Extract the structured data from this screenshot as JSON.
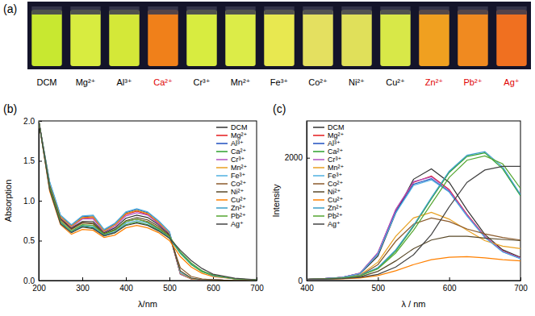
{
  "photo": {
    "panel": "(a)",
    "vials": [
      {
        "label": "DCM",
        "color": "#c8e830",
        "label_color": "#000000"
      },
      {
        "label": "Mg²⁺",
        "color": "#d8ec40",
        "label_color": "#000000"
      },
      {
        "label": "Al³⁺",
        "color": "#d4e838",
        "label_color": "#000000"
      },
      {
        "label": "Ca²⁺",
        "color": "#f0801a",
        "label_color": "#e00000"
      },
      {
        "label": "Cr³⁺",
        "color": "#d8ec40",
        "label_color": "#000000"
      },
      {
        "label": "Mn²⁺",
        "color": "#dcec48",
        "label_color": "#000000"
      },
      {
        "label": "Fe³⁺",
        "color": "#e8e850",
        "label_color": "#000000"
      },
      {
        "label": "Co²⁺",
        "color": "#e4e060",
        "label_color": "#000000"
      },
      {
        "label": "Ni²⁺",
        "color": "#e0e05a",
        "label_color": "#000000"
      },
      {
        "label": "Cu²⁺",
        "color": "#d8e848",
        "label_color": "#000000"
      },
      {
        "label": "Zn²⁺",
        "color": "#f0a020",
        "label_color": "#e00000"
      },
      {
        "label": "Pb²⁺",
        "color": "#f08a20",
        "label_color": "#e00000"
      },
      {
        "label": "Ag⁺",
        "color": "#f07020",
        "label_color": "#e00000"
      }
    ]
  },
  "chart_data": [
    {
      "type": "line",
      "panel": "(b)",
      "x_label": "λ/nm",
      "y_label": "Absorption",
      "legend": "upper right",
      "x": [
        200,
        225,
        250,
        275,
        300,
        325,
        350,
        375,
        400,
        425,
        450,
        475,
        500,
        525,
        550,
        575,
        600,
        650,
        700
      ],
      "xlim": [
        200,
        700
      ],
      "xticks": [
        200,
        300,
        400,
        500,
        600,
        700
      ],
      "ylim": [
        0,
        2.0
      ],
      "yticks": [
        {
          "value": 0,
          "label": "0.0"
        },
        {
          "value": 0.5,
          "label": "0.5"
        },
        {
          "value": 1,
          "label": "1.0"
        },
        {
          "value": 1.5,
          "label": "1.5"
        },
        {
          "value": 2,
          "label": "2.0"
        }
      ],
      "series": [
        {
          "name": "DCM",
          "color": "#333333",
          "values": [
            2.0,
            1.2,
            0.78,
            0.66,
            0.74,
            0.74,
            0.6,
            0.66,
            0.78,
            0.82,
            0.79,
            0.7,
            0.58,
            0.08,
            0.02,
            0.01,
            0.01,
            0,
            0
          ]
        },
        {
          "name": "Mg²⁺",
          "color": "#e41a1c",
          "values": [
            2.0,
            1.22,
            0.8,
            0.68,
            0.78,
            0.79,
            0.62,
            0.7,
            0.83,
            0.87,
            0.83,
            0.72,
            0.6,
            0.09,
            0.02,
            0.01,
            0.01,
            0,
            0
          ]
        },
        {
          "name": "Al³⁺",
          "color": "#1f4fbf",
          "values": [
            2.0,
            1.23,
            0.81,
            0.69,
            0.8,
            0.81,
            0.63,
            0.71,
            0.85,
            0.89,
            0.85,
            0.74,
            0.61,
            0.09,
            0.02,
            0.01,
            0.01,
            0,
            0
          ]
        },
        {
          "name": "Ca²⁺",
          "color": "#2ca02c",
          "values": [
            2.0,
            1.15,
            0.72,
            0.6,
            0.68,
            0.66,
            0.56,
            0.6,
            0.7,
            0.73,
            0.7,
            0.63,
            0.53,
            0.34,
            0.2,
            0.11,
            0.06,
            0.02,
            0.01
          ]
        },
        {
          "name": "Cr³⁺",
          "color": "#b050c0",
          "values": [
            2.0,
            1.21,
            0.79,
            0.67,
            0.77,
            0.77,
            0.61,
            0.68,
            0.81,
            0.85,
            0.82,
            0.71,
            0.59,
            0.08,
            0.02,
            0.01,
            0.01,
            0,
            0
          ]
        },
        {
          "name": "Mn²⁺",
          "color": "#e8a020",
          "values": [
            2.0,
            1.22,
            0.8,
            0.68,
            0.79,
            0.8,
            0.62,
            0.7,
            0.84,
            0.88,
            0.84,
            0.73,
            0.6,
            0.09,
            0.02,
            0.01,
            0.01,
            0,
            0
          ]
        },
        {
          "name": "Fe³⁺",
          "color": "#4fb0e0",
          "values": [
            2.0,
            1.24,
            0.82,
            0.7,
            0.81,
            0.82,
            0.64,
            0.72,
            0.86,
            0.9,
            0.86,
            0.75,
            0.61,
            0.1,
            0.03,
            0.01,
            0.01,
            0,
            0
          ]
        },
        {
          "name": "Co²⁺",
          "color": "#8b5a2b",
          "values": [
            2.0,
            1.18,
            0.76,
            0.64,
            0.72,
            0.71,
            0.58,
            0.63,
            0.74,
            0.77,
            0.74,
            0.66,
            0.56,
            0.16,
            0.05,
            0.02,
            0.01,
            0,
            0
          ]
        },
        {
          "name": "Ni²⁺",
          "color": "#5a4a2a",
          "values": [
            2.0,
            1.19,
            0.77,
            0.65,
            0.73,
            0.72,
            0.59,
            0.64,
            0.75,
            0.79,
            0.76,
            0.68,
            0.57,
            0.12,
            0.03,
            0.01,
            0.01,
            0,
            0
          ]
        },
        {
          "name": "Cu²⁺",
          "color": "#ff8000",
          "values": [
            2.0,
            1.12,
            0.7,
            0.58,
            0.64,
            0.63,
            0.54,
            0.57,
            0.66,
            0.69,
            0.66,
            0.6,
            0.5,
            0.3,
            0.17,
            0.09,
            0.05,
            0.02,
            0.01
          ]
        },
        {
          "name": "Zn²⁺",
          "color": "#3a9cc8",
          "values": [
            2.0,
            1.16,
            0.73,
            0.61,
            0.69,
            0.67,
            0.57,
            0.61,
            0.72,
            0.75,
            0.72,
            0.64,
            0.54,
            0.35,
            0.21,
            0.12,
            0.06,
            0.02,
            0.01
          ]
        },
        {
          "name": "Pb²⁺",
          "color": "#55a630",
          "values": [
            2.0,
            1.17,
            0.74,
            0.62,
            0.7,
            0.69,
            0.58,
            0.63,
            0.74,
            0.77,
            0.73,
            0.65,
            0.55,
            0.36,
            0.22,
            0.12,
            0.07,
            0.02,
            0.01
          ]
        },
        {
          "name": "Ag⁺",
          "color": "#444444",
          "values": [
            2.0,
            1.14,
            0.71,
            0.6,
            0.67,
            0.65,
            0.56,
            0.6,
            0.69,
            0.72,
            0.69,
            0.62,
            0.53,
            0.38,
            0.25,
            0.15,
            0.08,
            0.03,
            0.01
          ]
        }
      ]
    },
    {
      "type": "line",
      "panel": "(c)",
      "x_label": "λ / nm",
      "y_label": "Intensity",
      "legend": "upper left",
      "x": [
        400,
        425,
        450,
        475,
        500,
        525,
        550,
        575,
        600,
        625,
        650,
        675,
        700
      ],
      "xlim": [
        400,
        700
      ],
      "xticks": [
        400,
        500,
        600,
        700
      ],
      "ylim": [
        0,
        2600
      ],
      "yticks": [
        0,
        2000
      ],
      "series": [
        {
          "name": "DCM",
          "color": "#333333",
          "values": [
            20,
            30,
            50,
            110,
            400,
            1100,
            1650,
            1820,
            1600,
            1150,
            750,
            500,
            380
          ]
        },
        {
          "name": "Mg²⁺",
          "color": "#e41a1c",
          "values": [
            20,
            30,
            50,
            120,
            450,
            1150,
            1600,
            1700,
            1480,
            1080,
            720,
            480,
            370
          ]
        },
        {
          "name": "Al³⁺",
          "color": "#1f4fbf",
          "values": [
            20,
            30,
            50,
            118,
            440,
            1120,
            1570,
            1660,
            1450,
            1060,
            710,
            470,
            360
          ]
        },
        {
          "name": "Ca²⁺",
          "color": "#2ca02c",
          "values": [
            20,
            25,
            40,
            80,
            200,
            480,
            880,
            1330,
            1760,
            2020,
            2080,
            1820,
            1380
          ]
        },
        {
          "name": "Cr³⁺",
          "color": "#b050c0",
          "values": [
            20,
            30,
            50,
            122,
            455,
            1160,
            1610,
            1690,
            1470,
            1070,
            715,
            475,
            365
          ]
        },
        {
          "name": "Mn²⁺",
          "color": "#e8a020",
          "values": [
            20,
            28,
            45,
            90,
            300,
            720,
            1020,
            1110,
            1000,
            820,
            650,
            560,
            520
          ]
        },
        {
          "name": "Fe³⁺",
          "color": "#4fb0e0",
          "values": [
            20,
            30,
            50,
            115,
            430,
            1100,
            1550,
            1640,
            1440,
            1050,
            700,
            465,
            355
          ]
        },
        {
          "name": "Co²⁺",
          "color": "#8b5a2b",
          "values": [
            20,
            28,
            42,
            80,
            260,
            640,
            920,
            1020,
            960,
            840,
            760,
            700,
            660
          ]
        },
        {
          "name": "Ni²⁺",
          "color": "#5a4a2a",
          "values": [
            20,
            25,
            35,
            60,
            150,
            320,
            520,
            660,
            720,
            720,
            690,
            670,
            650
          ]
        },
        {
          "name": "Cu²⁺",
          "color": "#ff8000",
          "values": [
            20,
            22,
            28,
            40,
            80,
            160,
            260,
            340,
            380,
            390,
            370,
            340,
            320
          ]
        },
        {
          "name": "Zn²⁺",
          "color": "#3a9cc8",
          "values": [
            20,
            25,
            42,
            85,
            210,
            500,
            900,
            1350,
            1780,
            2040,
            2100,
            1850,
            1400
          ]
        },
        {
          "name": "Pb²⁺",
          "color": "#55a630",
          "values": [
            20,
            25,
            40,
            75,
            190,
            450,
            820,
            1250,
            1680,
            1960,
            2030,
            1900,
            1500
          ]
        },
        {
          "name": "Ag⁺",
          "color": "#444444",
          "values": [
            20,
            22,
            30,
            50,
            100,
            220,
            420,
            750,
            1200,
            1600,
            1800,
            1860,
            1860
          ]
        }
      ]
    }
  ]
}
